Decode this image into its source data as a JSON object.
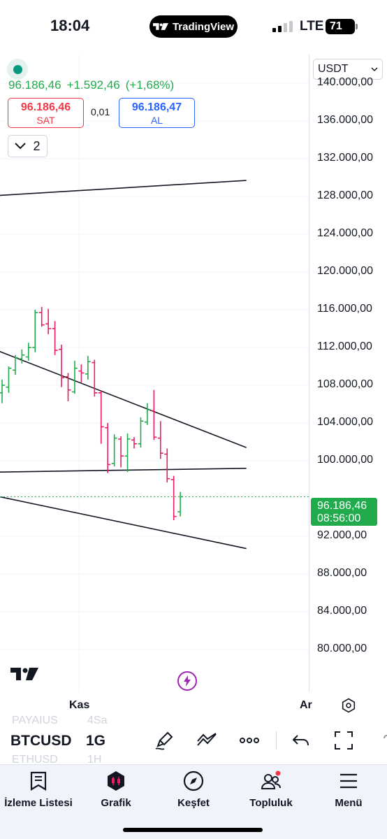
{
  "status_bar": {
    "time": "18:04",
    "app_pill": "TradingView",
    "network": "LTE",
    "battery": "71"
  },
  "quote": {
    "price": "96.186,46",
    "change": "+1.592,46",
    "change_pct": "(+1,68%)",
    "sell_price": "96.186,46",
    "sell_label": "SAT",
    "spread": "0,01",
    "buy_price": "96.186,47",
    "buy_label": "AL",
    "indicators_count": "2"
  },
  "currency": "USDT",
  "price_axis": {
    "ticks": [
      "140.000,00",
      "136.000,00",
      "132.000,00",
      "128.000,00",
      "124.000,00",
      "120.000,00",
      "116.000,00",
      "112.000,00",
      "108.000,00",
      "104.000,00",
      "100.000,00",
      "92.000,00",
      "88.000,00",
      "84.000,00",
      "80.000,00"
    ],
    "last_price": "96.186,46",
    "countdown": "08:56:00"
  },
  "time_axis": {
    "labels": [
      "Kas",
      "Ar"
    ]
  },
  "toolbar": {
    "ghost_row_1": [
      "PAYAIUS",
      "4Sa"
    ],
    "symbol": "BTCUSD",
    "interval": "1G",
    "ghost_row_2": [
      "ETHUSD",
      "1H"
    ]
  },
  "nav": {
    "items": [
      {
        "label": "İzleme Listesi",
        "icon": "watchlist-icon"
      },
      {
        "label": "Grafik",
        "icon": "chart-icon"
      },
      {
        "label": "Keşfet",
        "icon": "compass-icon"
      },
      {
        "label": "Topluluk",
        "icon": "community-icon"
      },
      {
        "label": "Menü",
        "icon": "menu-icon"
      }
    ]
  },
  "colors": {
    "up": "#22ab4c",
    "down": "#e91e63",
    "sell": "#f23645",
    "buy": "#2962ff",
    "accent_purple": "#9c27b0"
  },
  "chart_data": {
    "type": "ohlc",
    "symbol": "BTCUSD",
    "interval": "1G",
    "ylim": [
      78000,
      142000
    ],
    "last_price": 96186.46,
    "bars": [
      {
        "o": 107200,
        "h": 108600,
        "l": 106100,
        "c": 108000
      },
      {
        "o": 107800,
        "h": 110000,
        "l": 107200,
        "c": 109800
      },
      {
        "o": 109600,
        "h": 111200,
        "l": 109100,
        "c": 110900
      },
      {
        "o": 110800,
        "h": 111800,
        "l": 110300,
        "c": 111200
      },
      {
        "o": 111000,
        "h": 112500,
        "l": 110600,
        "c": 112000
      },
      {
        "o": 112000,
        "h": 116000,
        "l": 111500,
        "c": 115700
      },
      {
        "o": 115700,
        "h": 116300,
        "l": 114200,
        "c": 114400
      },
      {
        "o": 114500,
        "h": 116100,
        "l": 113400,
        "c": 114000
      },
      {
        "o": 114000,
        "h": 114800,
        "l": 111200,
        "c": 111700
      },
      {
        "o": 111800,
        "h": 112300,
        "l": 107800,
        "c": 108800
      },
      {
        "o": 108900,
        "h": 109300,
        "l": 106300,
        "c": 107500
      },
      {
        "o": 107300,
        "h": 110600,
        "l": 107100,
        "c": 109800
      },
      {
        "o": 109500,
        "h": 110200,
        "l": 108300,
        "c": 109300
      },
      {
        "o": 109200,
        "h": 111100,
        "l": 108600,
        "c": 110500
      },
      {
        "o": 110400,
        "h": 110700,
        "l": 106800,
        "c": 107200
      },
      {
        "o": 107200,
        "h": 107400,
        "l": 101800,
        "c": 103600
      },
      {
        "o": 103500,
        "h": 104000,
        "l": 98700,
        "c": 99600
      },
      {
        "o": 99700,
        "h": 102800,
        "l": 99400,
        "c": 102400
      },
      {
        "o": 102300,
        "h": 102600,
        "l": 99300,
        "c": 100500
      },
      {
        "o": 100500,
        "h": 102900,
        "l": 98800,
        "c": 102300
      },
      {
        "o": 102200,
        "h": 102500,
        "l": 101300,
        "c": 101800
      },
      {
        "o": 101800,
        "h": 104600,
        "l": 101400,
        "c": 104200
      },
      {
        "o": 104100,
        "h": 106100,
        "l": 103800,
        "c": 105400
      },
      {
        "o": 105300,
        "h": 107500,
        "l": 102200,
        "c": 102500
      },
      {
        "o": 102400,
        "h": 104200,
        "l": 100200,
        "c": 100800
      },
      {
        "o": 100700,
        "h": 101300,
        "l": 97700,
        "c": 98100
      },
      {
        "o": 98000,
        "h": 98400,
        "l": 93700,
        "c": 94100
      },
      {
        "o": 94600,
        "h": 96700,
        "l": 94100,
        "c": 96186.46
      }
    ],
    "trendlines": [
      {
        "name": "top-channel",
        "from": {
          "bar": -10,
          "price": 127700
        },
        "to": {
          "bar": 37,
          "price": 129700
        }
      },
      {
        "name": "upper-wedge",
        "from": {
          "bar": -10,
          "price": 114200
        },
        "to": {
          "bar": 37,
          "price": 101400
        }
      },
      {
        "name": "horizontal-support",
        "from": {
          "bar": -10,
          "price": 98700
        },
        "to": {
          "bar": 37,
          "price": 99200
        }
      },
      {
        "name": "lower-wedge",
        "from": {
          "bar": -10,
          "price": 97600
        },
        "to": {
          "bar": 37,
          "price": 90700
        }
      }
    ]
  }
}
